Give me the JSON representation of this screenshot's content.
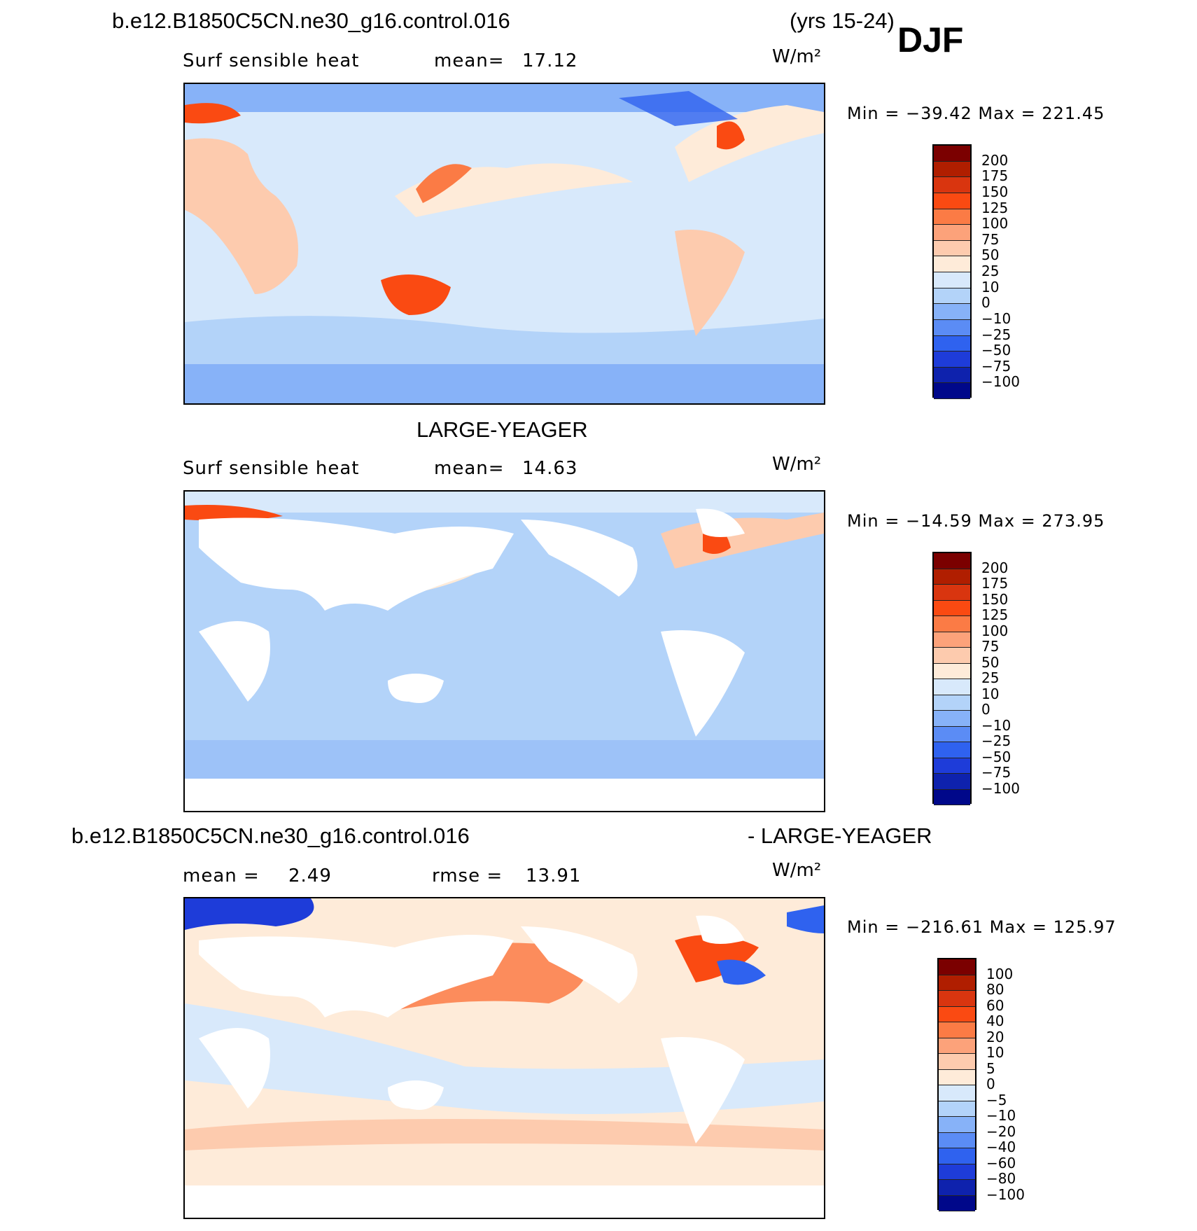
{
  "top_panel": {
    "case_label": "b.e12.B1850C5CN.ne30_g16.control.016",
    "years_label": "(yrs 15-24)",
    "season": "DJF",
    "variable": "Surf  sensible  heat",
    "mean_label": "mean=",
    "mean_value": "17.12",
    "units": "W/m²",
    "min_max": "Min  =  −39.42  Max  =  221.45",
    "colorbar_labels": [
      "200",
      "175",
      "150",
      "125",
      "100",
      "75",
      "50",
      "25",
      "10",
      "0",
      "−10",
      "−25",
      "−50",
      "−75",
      "−100"
    ]
  },
  "middle_panel": {
    "title": "LARGE-YEAGER",
    "variable": "Surf  sensible  heat",
    "mean_label": "mean=",
    "mean_value": "14.63",
    "units": "W/m²",
    "min_max": "Min  =  −14.59  Max  =  273.95",
    "colorbar_labels": [
      "200",
      "175",
      "150",
      "125",
      "100",
      "75",
      "50",
      "25",
      "10",
      "0",
      "−10",
      "−25",
      "−50",
      "−75",
      "−100"
    ]
  },
  "bottom_panel": {
    "case_label": "b.e12.B1850C5CN.ne30_g16.control.016",
    "diff_label": "- LARGE-YEAGER",
    "mean_label": "mean =",
    "mean_value": "2.49",
    "rmse_label": "rmse =",
    "rmse_value": "13.91",
    "units": "W/m²",
    "min_max": "Min  =  −216.61  Max  =  125.97",
    "colorbar_labels": [
      "100",
      "80",
      "60",
      "40",
      "20",
      "10",
      "5",
      "0",
      "−5",
      "−10",
      "−20",
      "−40",
      "−60",
      "−80",
      "−100"
    ]
  },
  "colors": {
    "colorbar": [
      "#7b0000",
      "#b01e00",
      "#d9350f",
      "#fa4a12",
      "#fb7b45",
      "#fca27a",
      "#fdcbae",
      "#feebd9",
      "#d8e9fb",
      "#b3d3f9",
      "#87b2f8",
      "#5b8cf5",
      "#2f62ef",
      "#1e3cd9",
      "#0e22ad",
      "#00088a"
    ],
    "ocean_light": "#d8e9fb",
    "ocean_mid": "#b3d3f9",
    "ocean_neg": "#87b2f8",
    "land": "#ffffff"
  }
}
